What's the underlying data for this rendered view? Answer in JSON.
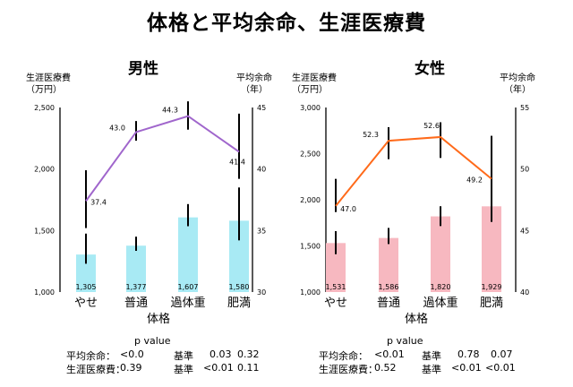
{
  "title": "体格と平均余命、生涯医療費",
  "panels": [
    {
      "title": "男性",
      "left_axis_label": [
        "生涯医療費",
        "（万円）"
      ],
      "right_axis_label": [
        "平均余命",
        "（年）"
      ],
      "left_ticks": [
        "2,500",
        "2,000",
        "1,500",
        "1,000"
      ],
      "right_ticks": [
        "45",
        "40",
        "35",
        "30"
      ],
      "x_label": "体格",
      "line_color": "#a066cc",
      "bar_color": "#a8eaf4"
    },
    {
      "title": "女性",
      "left_axis_label": [
        "生涯医療費",
        "（万円）"
      ],
      "right_axis_label": [
        "平均余命",
        "（年）"
      ],
      "left_ticks": [
        "3,000",
        "2,500",
        "2,000",
        "1,500",
        "1,000"
      ],
      "right_ticks": [
        "55",
        "50",
        "45",
        "40"
      ],
      "x_label": "体格",
      "line_color": "#ff6a1a",
      "bar_color": "#f7b8c0"
    }
  ],
  "chart_data": [
    {
      "type": "bar",
      "title": "男性",
      "categories": [
        "やせ",
        "普通",
        "過体重",
        "肥満"
      ],
      "xlabel": "体格",
      "ylabel": "生涯医療費（万円）",
      "ylim": [
        1000,
        2500
      ],
      "values": [
        1305,
        1377,
        1607,
        1580
      ],
      "value_labels": [
        "1,305",
        "1,377",
        "1,607",
        "1,580"
      ],
      "bar_error": [
        [
          1230,
          1475
        ],
        [
          1335,
          1450
        ],
        [
          1535,
          1715
        ],
        [
          1420,
          1850
        ]
      ],
      "y2label": "平均余命（年）",
      "y2lim": [
        30,
        45
      ],
      "line_values": [
        37.4,
        43.0,
        44.3,
        41.4
      ],
      "line_value_labels": [
        "37.4",
        "43.0",
        "44.3",
        "41.4"
      ],
      "line_error": [
        [
          35.2,
          39.9
        ],
        [
          42.3,
          43.9
        ],
        [
          43.2,
          45.5
        ],
        [
          39.2,
          44.5
        ]
      ],
      "grid": false
    },
    {
      "type": "bar",
      "title": "女性",
      "categories": [
        "やせ",
        "普通",
        "過体重",
        "肥満"
      ],
      "xlabel": "体格",
      "ylabel": "生涯医療費（万円）",
      "ylim": [
        1000,
        3000
      ],
      "values": [
        1531,
        1586,
        1820,
        1929
      ],
      "value_labels": [
        "1,531",
        "1,586",
        "1,820",
        "1,929"
      ],
      "bar_error": [
        [
          1410,
          1660
        ],
        [
          1520,
          1695
        ],
        [
          1715,
          1930
        ],
        [
          1760,
          2150
        ]
      ],
      "y2label": "平均余命（年）",
      "y2lim": [
        40,
        55
      ],
      "line_values": [
        47.0,
        52.3,
        52.6,
        49.2
      ],
      "line_value_labels": [
        "47.0",
        "52.3",
        "52.6",
        "49.2"
      ],
      "line_error": [
        [
          46.5,
          49.2
        ],
        [
          50.8,
          53.4
        ],
        [
          50.9,
          53.8
        ],
        [
          46.6,
          52.7
        ]
      ],
      "grid": false
    }
  ],
  "stats": [
    {
      "head": "p value",
      "rows": [
        [
          "平均余命：",
          "<0.0",
          "基準",
          "0.03",
          "0.32"
        ],
        [
          "生涯医療費：",
          "0.39",
          "基準",
          "<0.01",
          "0.11"
        ]
      ]
    },
    {
      "head": "p value",
      "rows": [
        [
          "平均余命：",
          "<0.01",
          "基準",
          "0.78",
          "0.07"
        ],
        [
          "生涯医療費：",
          "0.52",
          "基準",
          "<0.01",
          "<0.01"
        ]
      ]
    }
  ]
}
